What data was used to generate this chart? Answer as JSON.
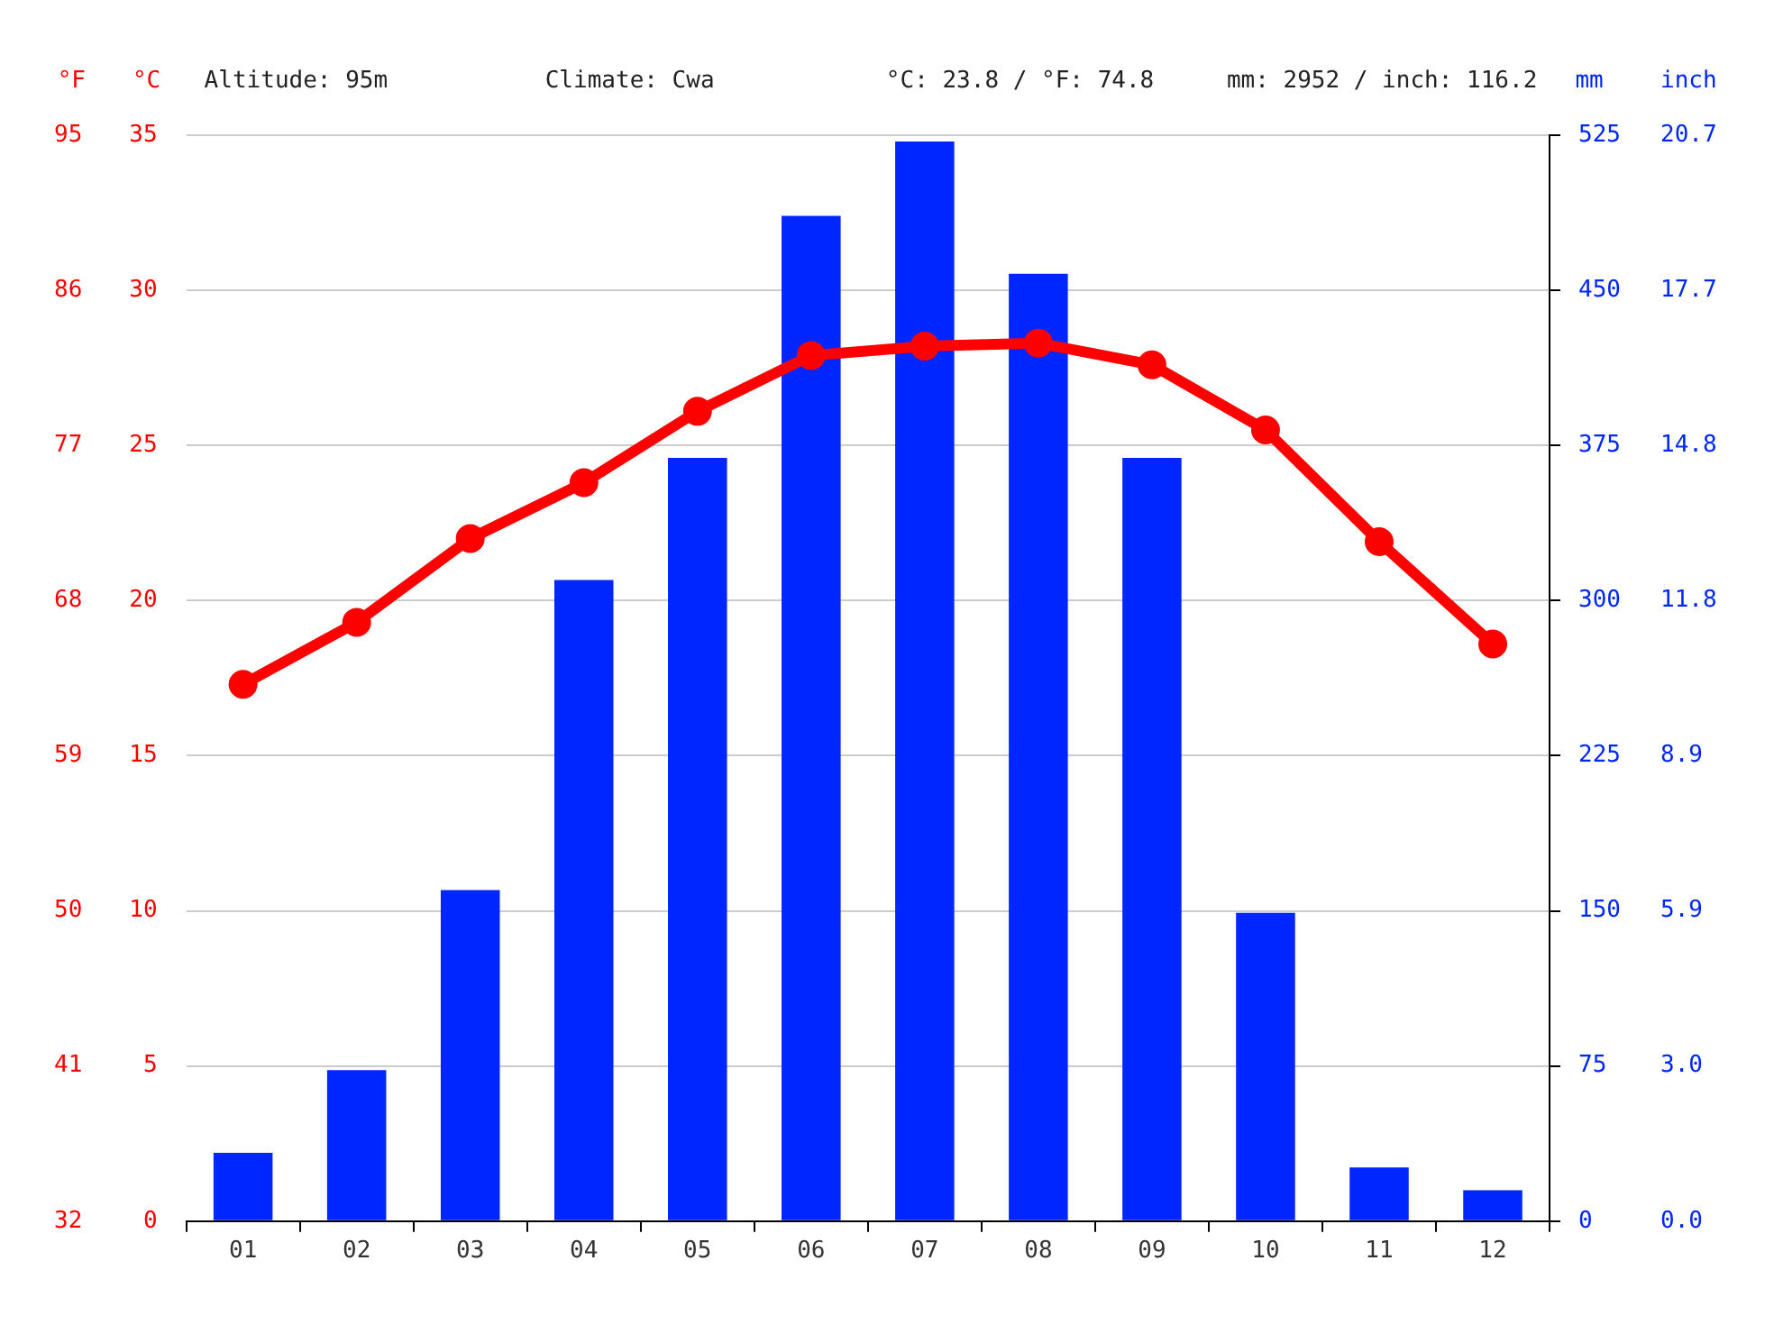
{
  "chart_data": {
    "type": "bar",
    "categories": [
      "01",
      "02",
      "03",
      "04",
      "05",
      "06",
      "07",
      "08",
      "09",
      "10",
      "11",
      "12"
    ],
    "ylabel": "°C",
    "y2label": "mm",
    "y3label": "°F",
    "ylim": [
      0,
      35
    ],
    "yticks": [
      0,
      5,
      10,
      15,
      20,
      25,
      30,
      35
    ],
    "y2lim": [
      0,
      525
    ],
    "y2ticks": [
      0,
      75,
      150,
      225,
      300,
      375,
      450,
      525
    ],
    "y3lim": [
      32,
      95
    ],
    "y3ticks": [
      32,
      41,
      50,
      59,
      68,
      77,
      86,
      95
    ],
    "annotations": [
      "Altitude: 95m",
      "Climate: Cwa",
      "°C: 23.8 / °F: 74.8",
      "mm: 2952 / inch: 116.2",
      "inch",
      "20.7",
      "17.7",
      "14.8",
      "11.8",
      "8.9",
      "5.9",
      "3.0",
      "0.0"
    ],
    "series": [
      {
        "axis": "y2",
        "color": "#0026ff",
        "values": [
          33,
          73,
          160,
          310,
          369,
          486,
          522,
          458,
          369,
          149,
          26,
          15
        ]
      },
      {
        "type": "line",
        "axis": "y",
        "color": "#ff0000",
        "marker": "circle",
        "values": [
          17.3,
          19.3,
          22.0,
          23.8,
          26.1,
          27.9,
          28.2,
          28.3,
          27.6,
          25.5,
          21.9,
          18.6
        ]
      }
    ],
    "grid": "y",
    "legend": false
  }
}
